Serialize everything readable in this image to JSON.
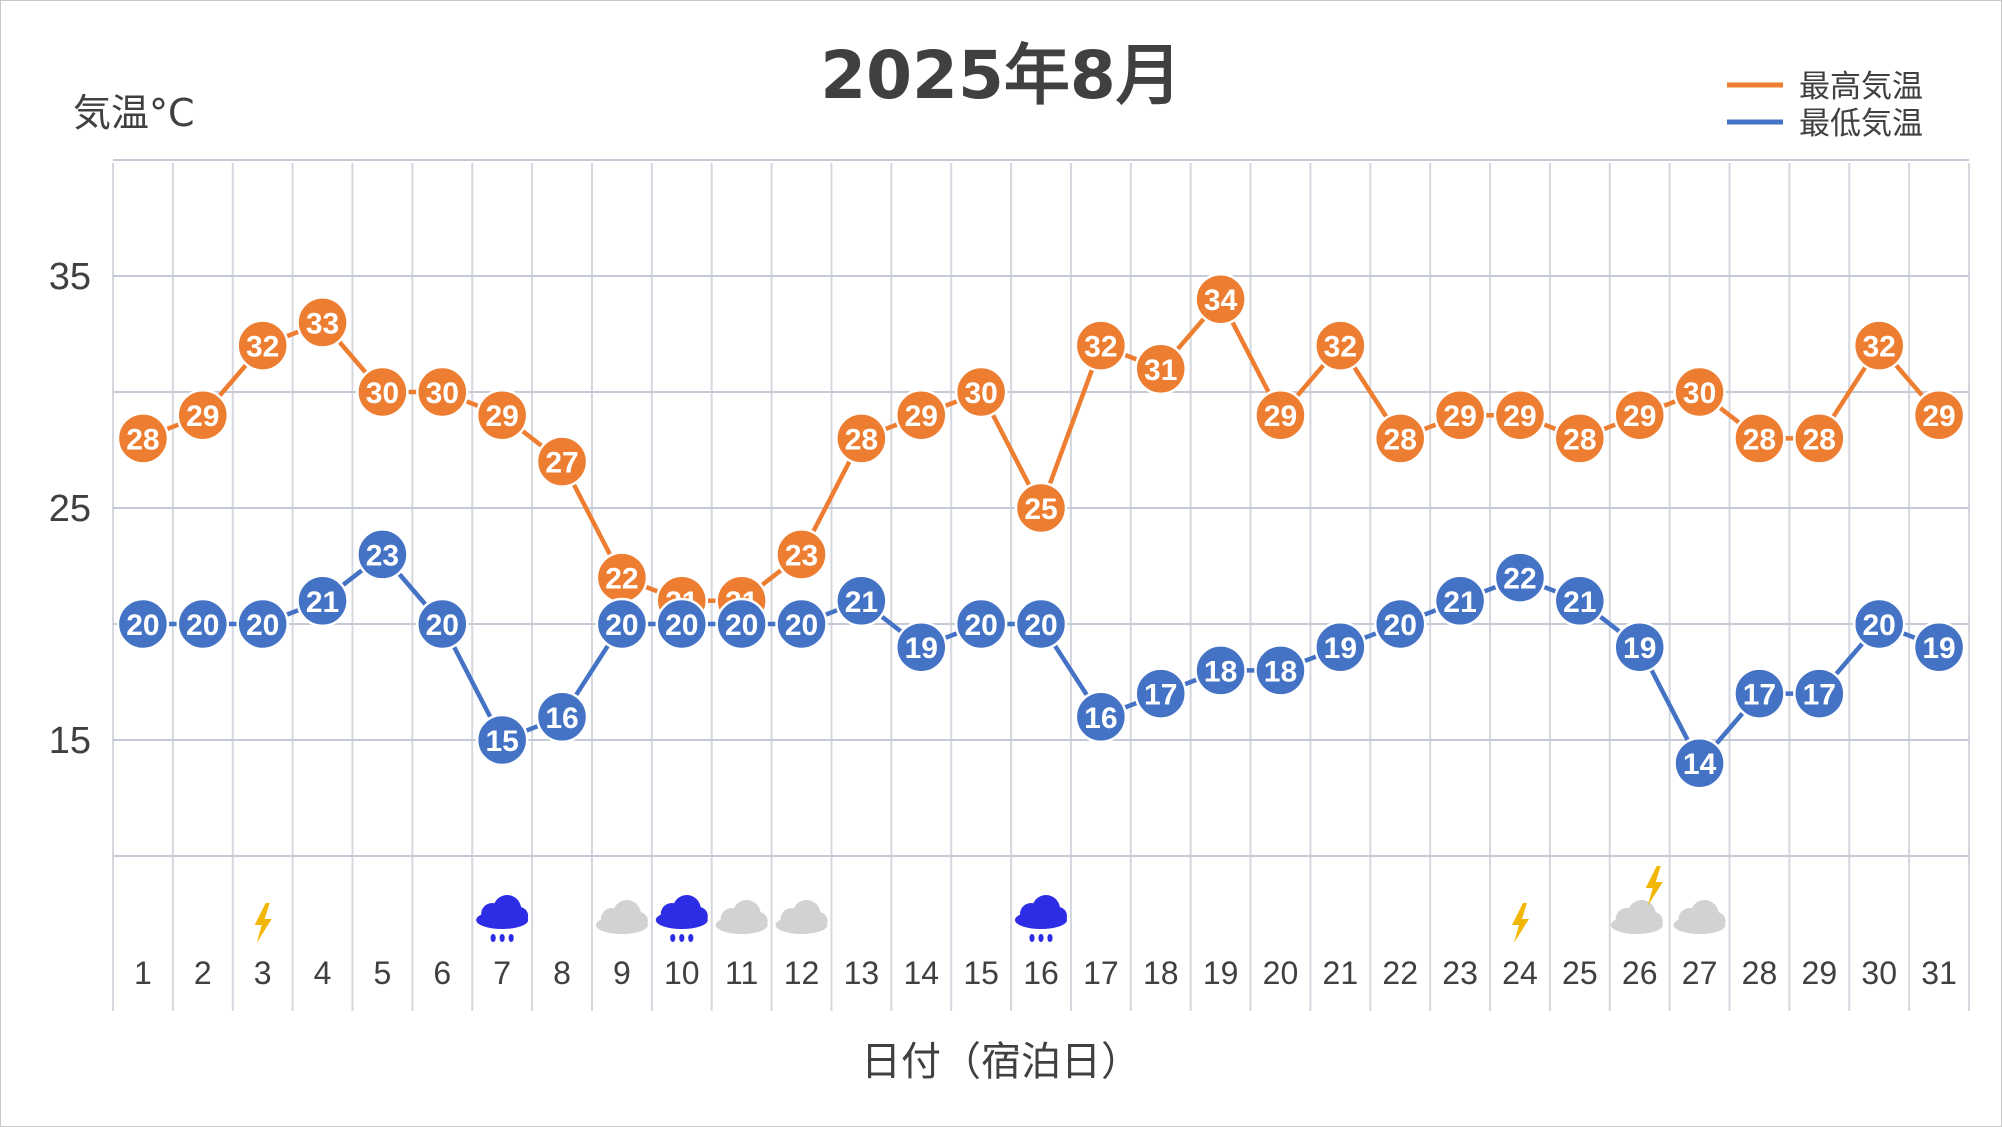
{
  "chart_data": {
    "type": "line",
    "title": "2025年8月",
    "ylabel": "気温°C",
    "xlabel": "日付（宿泊日）",
    "ylim": [
      10,
      40
    ],
    "yticks": [
      15,
      25,
      35
    ],
    "grid": true,
    "legend_position": "top-right",
    "categories": [
      "1",
      "2",
      "3",
      "4",
      "5",
      "6",
      "7",
      "8",
      "9",
      "10",
      "11",
      "12",
      "13",
      "14",
      "15",
      "16",
      "17",
      "18",
      "19",
      "20",
      "21",
      "22",
      "23",
      "24",
      "25",
      "26",
      "27",
      "28",
      "29",
      "30",
      "31"
    ],
    "series": [
      {
        "name": "最高気温",
        "color": "#ED7D31",
        "values": [
          28,
          29,
          32,
          33,
          30,
          30,
          29,
          27,
          22,
          21,
          21,
          23,
          28,
          29,
          30,
          25,
          32,
          31,
          34,
          29,
          32,
          28,
          29,
          29,
          28,
          29,
          30,
          28,
          28,
          32,
          29
        ]
      },
      {
        "name": "最低気温",
        "color": "#4472C4",
        "values": [
          20,
          20,
          20,
          21,
          23,
          20,
          15,
          16,
          20,
          20,
          20,
          20,
          21,
          19,
          20,
          20,
          16,
          17,
          18,
          18,
          19,
          20,
          21,
          22,
          21,
          19,
          14,
          17,
          17,
          20,
          19
        ]
      }
    ],
    "weather_icons": [
      {
        "day": 3,
        "icon": "lightning-icon"
      },
      {
        "day": 7,
        "icon": "rain-cloud-icon"
      },
      {
        "day": 9,
        "icon": "cloud-icon"
      },
      {
        "day": 10,
        "icon": "rain-cloud-icon"
      },
      {
        "day": 11,
        "icon": "cloud-icon"
      },
      {
        "day": 12,
        "icon": "cloud-icon"
      },
      {
        "day": 16,
        "icon": "rain-cloud-icon"
      },
      {
        "day": 24,
        "icon": "lightning-icon"
      },
      {
        "day": 26,
        "icon": "cloud-lightning-icon"
      },
      {
        "day": 27,
        "icon": "cloud-icon"
      }
    ]
  }
}
